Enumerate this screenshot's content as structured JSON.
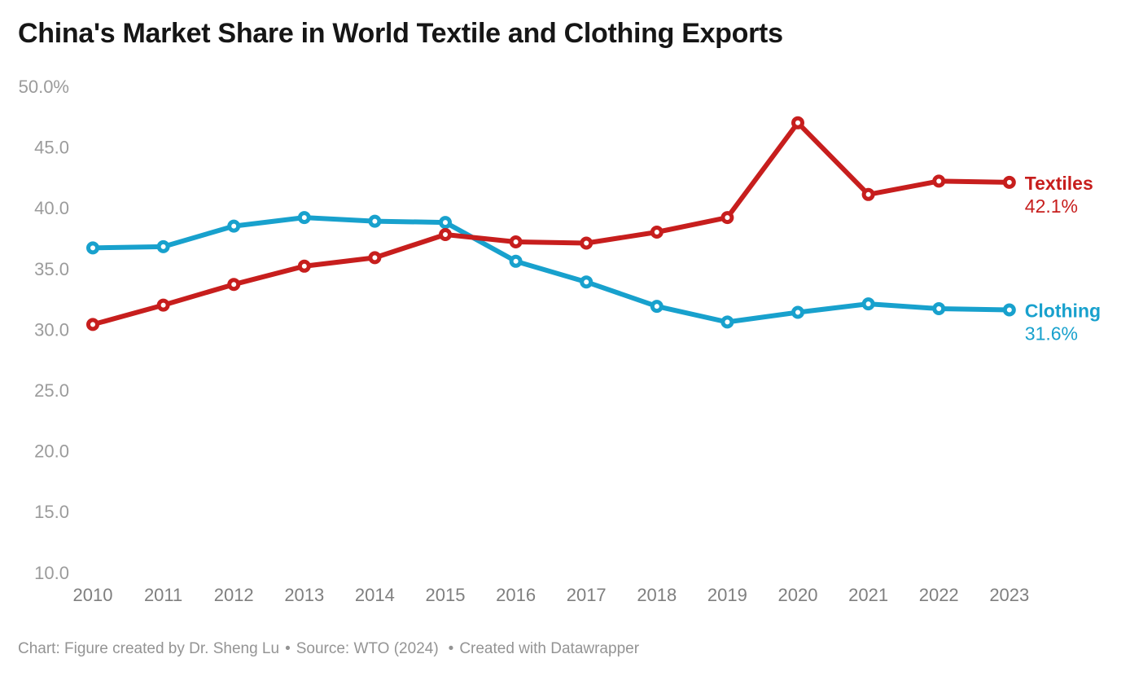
{
  "title": "China's Market Share in World Textile and Clothing Exports",
  "footer": {
    "chart_credit": "Chart: Figure created by Dr. Sheng Lu",
    "separator": "•",
    "source": "Source: WTO (2024)",
    "created_with": "Created with Datawrapper"
  },
  "colors": {
    "textiles_red": "#c71e1d",
    "clothing_blue": "#18a1cd",
    "title_text": "#161616",
    "y_tick_text": "#9b9b9b",
    "x_tick_text": "#7f7f7f",
    "footer_text": "#949494",
    "marker_fill": "#ffffff",
    "background": "#ffffff"
  },
  "chart_data": {
    "type": "line",
    "title": "China's Market Share in World Textile and Clothing Exports",
    "xlabel": "",
    "ylabel": "",
    "ylim": [
      10,
      50
    ],
    "grid": false,
    "legend_position": "end-of-line",
    "categories": [
      "2010",
      "2011",
      "2012",
      "2013",
      "2014",
      "2015",
      "2016",
      "2017",
      "2018",
      "2019",
      "2020",
      "2021",
      "2022",
      "2023"
    ],
    "y_ticks": [
      {
        "value": 50,
        "label": "50.0%"
      },
      {
        "value": 45,
        "label": "45.0"
      },
      {
        "value": 40,
        "label": "40.0"
      },
      {
        "value": 35,
        "label": "35.0"
      },
      {
        "value": 30,
        "label": "30.0"
      },
      {
        "value": 25,
        "label": "25.0"
      },
      {
        "value": 20,
        "label": "20.0"
      },
      {
        "value": 15,
        "label": "15.0"
      },
      {
        "value": 10,
        "label": "10.0"
      }
    ],
    "series": [
      {
        "name": "Textiles",
        "color": "#c71e1d",
        "end_label_value": "42.1%",
        "values": [
          30.4,
          32.0,
          33.7,
          35.2,
          35.9,
          37.8,
          37.2,
          37.1,
          38.0,
          39.2,
          47.0,
          41.1,
          42.2,
          42.1
        ]
      },
      {
        "name": "Clothing",
        "color": "#18a1cd",
        "end_label_value": "31.6%",
        "values": [
          36.7,
          36.8,
          38.5,
          39.2,
          38.9,
          38.8,
          35.6,
          33.9,
          31.9,
          30.6,
          31.4,
          32.1,
          31.7,
          31.6
        ]
      }
    ]
  }
}
